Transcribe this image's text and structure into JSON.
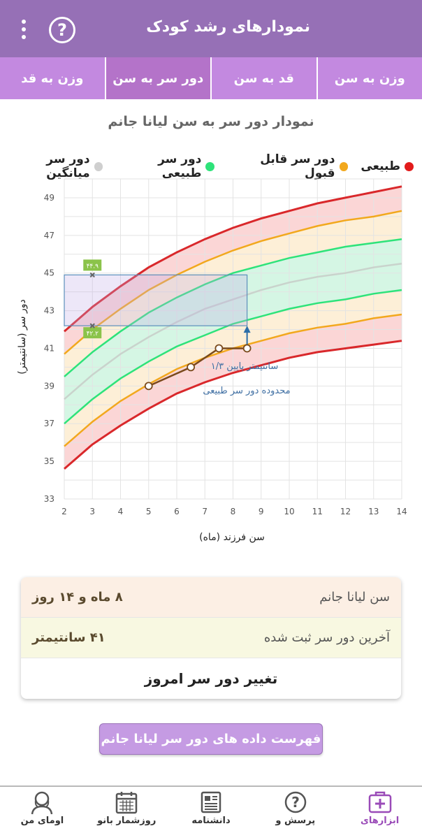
{
  "header": {
    "title": "نمودارهای رشد کودک",
    "menu_icon": "more-vertical-icon",
    "help_icon": "help-icon"
  },
  "tabs": [
    {
      "label": "وزن به سن",
      "active": false
    },
    {
      "label": "قد به سن",
      "active": false
    },
    {
      "label": "دور سر به سن",
      "active": true
    },
    {
      "label": "وزن به قد",
      "active": false
    }
  ],
  "chart_title": "نمودار دور سر به سن لیانا جانم",
  "legend": [
    {
      "label": "طبیعی",
      "color": "#e21b1b"
    },
    {
      "label": "دور سر قابل قبول",
      "color": "#f2a81d"
    },
    {
      "label": "دور سر طبیعی",
      "color": "#2ee37a"
    },
    {
      "label": "دور سر میانگین",
      "color": "#cfcfcf"
    }
  ],
  "chart_data": {
    "type": "line",
    "xlabel": "سن فرزند (ماه)",
    "ylabel": "دور سر (سانتیمتر)",
    "xlim": [
      2,
      14
    ],
    "ylim": [
      33,
      50
    ],
    "x_ticks": [
      "2",
      "3",
      "4",
      "5",
      "6",
      "7",
      "8",
      "9",
      "10",
      "11",
      "12",
      "13",
      "14"
    ],
    "y_ticks": [
      "33",
      "35",
      "37",
      "39",
      "41",
      "43",
      "45",
      "47",
      "49"
    ],
    "grid": true,
    "curves": {
      "x": [
        2,
        3,
        4,
        5,
        6,
        7,
        8,
        9,
        10,
        11,
        12,
        13,
        14
      ],
      "red_upper": [
        41.9,
        43.2,
        44.3,
        45.3,
        46.1,
        46.8,
        47.4,
        47.9,
        48.3,
        48.7,
        49.0,
        49.3,
        49.6
      ],
      "orange_upper": [
        40.7,
        42.0,
        43.1,
        44.1,
        44.9,
        45.6,
        46.2,
        46.7,
        47.1,
        47.5,
        47.8,
        48.0,
        48.3
      ],
      "green_upper": [
        39.5,
        40.8,
        41.9,
        42.9,
        43.7,
        44.4,
        45.0,
        45.4,
        45.8,
        46.1,
        46.4,
        46.6,
        46.8
      ],
      "median": [
        38.3,
        39.6,
        40.7,
        41.6,
        42.4,
        43.1,
        43.6,
        44.1,
        44.5,
        44.8,
        45.0,
        45.3,
        45.5
      ],
      "green_lower": [
        37.0,
        38.3,
        39.4,
        40.3,
        41.1,
        41.7,
        42.3,
        42.7,
        43.1,
        43.4,
        43.6,
        43.9,
        44.1
      ],
      "orange_lower": [
        35.8,
        37.1,
        38.2,
        39.1,
        39.9,
        40.5,
        41.0,
        41.4,
        41.8,
        42.1,
        42.3,
        42.6,
        42.8
      ],
      "red_lower": [
        34.6,
        35.9,
        36.9,
        37.8,
        38.6,
        39.2,
        39.7,
        40.1,
        40.5,
        40.8,
        41.0,
        41.2,
        41.4
      ]
    },
    "child_series": {
      "x": [
        5,
        6.5,
        7.5,
        8.5
      ],
      "y": [
        39,
        40,
        41,
        41
      ]
    },
    "markers": [
      {
        "label": "۴۴.۹",
        "y": 44.9
      },
      {
        "label": "۴۲.۲",
        "y": 42.2
      }
    ],
    "annotation": [
      "۱/۳ سانتیمتر پایین",
      "محدوده دور سر طبیعی"
    ]
  },
  "info": {
    "age_label": "سن لیانا جانم",
    "age_value": "۸ ماه و ۱۴ روز",
    "head_label": "آخرین دور سر ثبت شده",
    "head_value": "۴۱ سانتیمتر",
    "change_button": "تغییر دور سر امروز"
  },
  "list_button": "فهرست داده های دور سر لیانا جانم",
  "bottom_nav": [
    {
      "label": "ابزارهای",
      "icon": "medical-kit-icon",
      "active": true
    },
    {
      "label": "پرسش و",
      "icon": "question-icon",
      "active": false
    },
    {
      "label": "دانشنامه",
      "icon": "newspaper-icon",
      "active": false
    },
    {
      "label": "روزشمار بانو",
      "icon": "calendar-icon",
      "active": false
    },
    {
      "label": "اومای من",
      "icon": "woman-profile-icon",
      "active": false
    }
  ]
}
